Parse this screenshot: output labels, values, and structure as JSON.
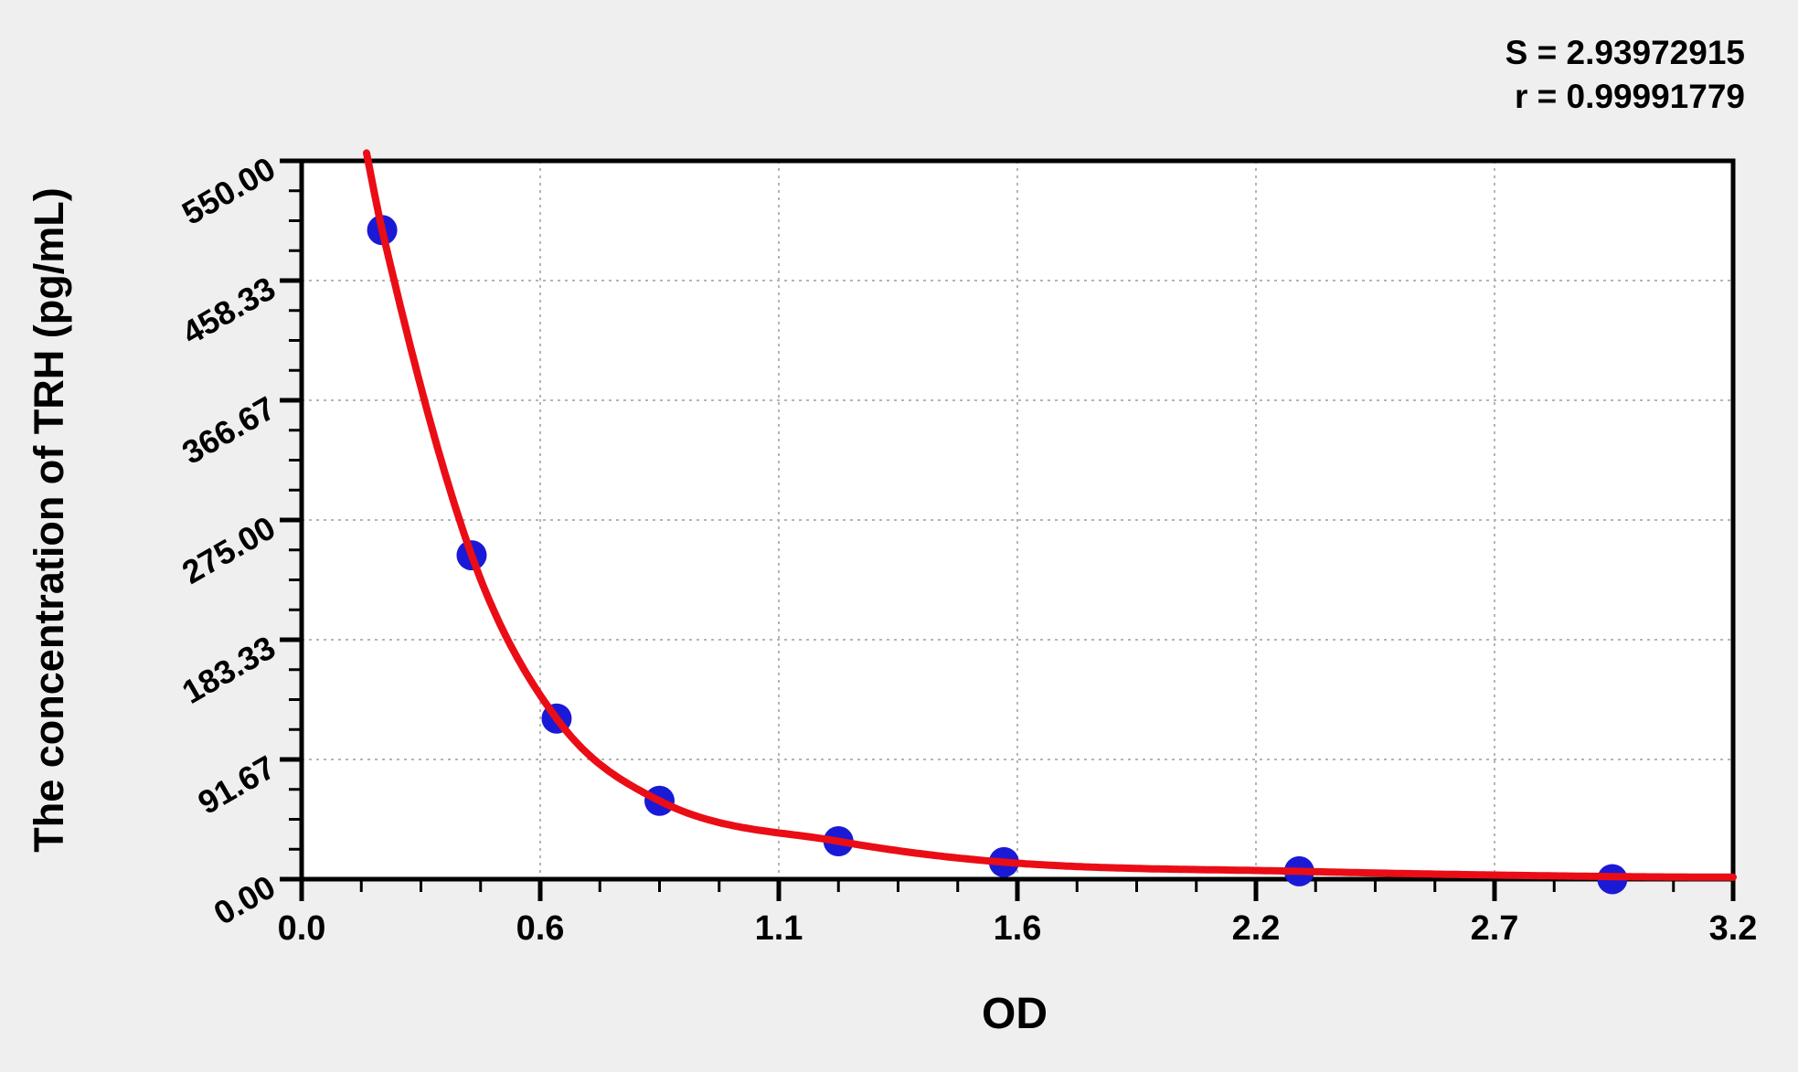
{
  "page": {
    "background_color": "#efefef",
    "plot_background_color": "#ffffff"
  },
  "stats": {
    "s_line": "S = 2.93972915",
    "r_line": "r = 0.99991779"
  },
  "chart_data": {
    "type": "scatter",
    "title": "",
    "xlabel": "OD",
    "ylabel": "The concentration of TRH (pg/mL)",
    "xlim": [
      0,
      3.2
    ],
    "ylim": [
      0,
      550
    ],
    "x_tick_labels": [
      "0.0",
      "0.6",
      "1.1",
      "1.6",
      "2.2",
      "2.7",
      "3.2"
    ],
    "y_tick_labels": [
      "0.00",
      "91.67",
      "183.33",
      "275.00",
      "366.67",
      "458.33",
      "550.00"
    ],
    "minor_ticks_per_interval": 3,
    "grid": "dotted-major",
    "grid_color": "#b5b5b5",
    "axis_color": "#000000",
    "legend": "none",
    "series": [
      {
        "name": "standard-points",
        "type": "scatter",
        "color": "#1a1ad6",
        "points": [
          {
            "od": 0.18,
            "conc": 497
          },
          {
            "od": 0.38,
            "conc": 248
          },
          {
            "od": 0.57,
            "conc": 123
          },
          {
            "od": 0.8,
            "conc": 60
          },
          {
            "od": 1.2,
            "conc": 29
          },
          {
            "od": 1.57,
            "conc": 13
          },
          {
            "od": 2.23,
            "conc": 6
          },
          {
            "od": 2.93,
            "conc": 0
          }
        ]
      },
      {
        "name": "fitted-curve",
        "type": "line",
        "color": "#ea0d16",
        "anchors": [
          [
            0.145,
            556
          ],
          [
            0.18,
            497
          ],
          [
            0.38,
            248
          ],
          [
            0.57,
            123
          ],
          [
            0.8,
            60
          ],
          [
            1.2,
            29
          ],
          [
            1.57,
            13
          ],
          [
            2.23,
            6
          ],
          [
            2.93,
            2
          ],
          [
            3.2,
            1.5
          ]
        ]
      }
    ]
  }
}
